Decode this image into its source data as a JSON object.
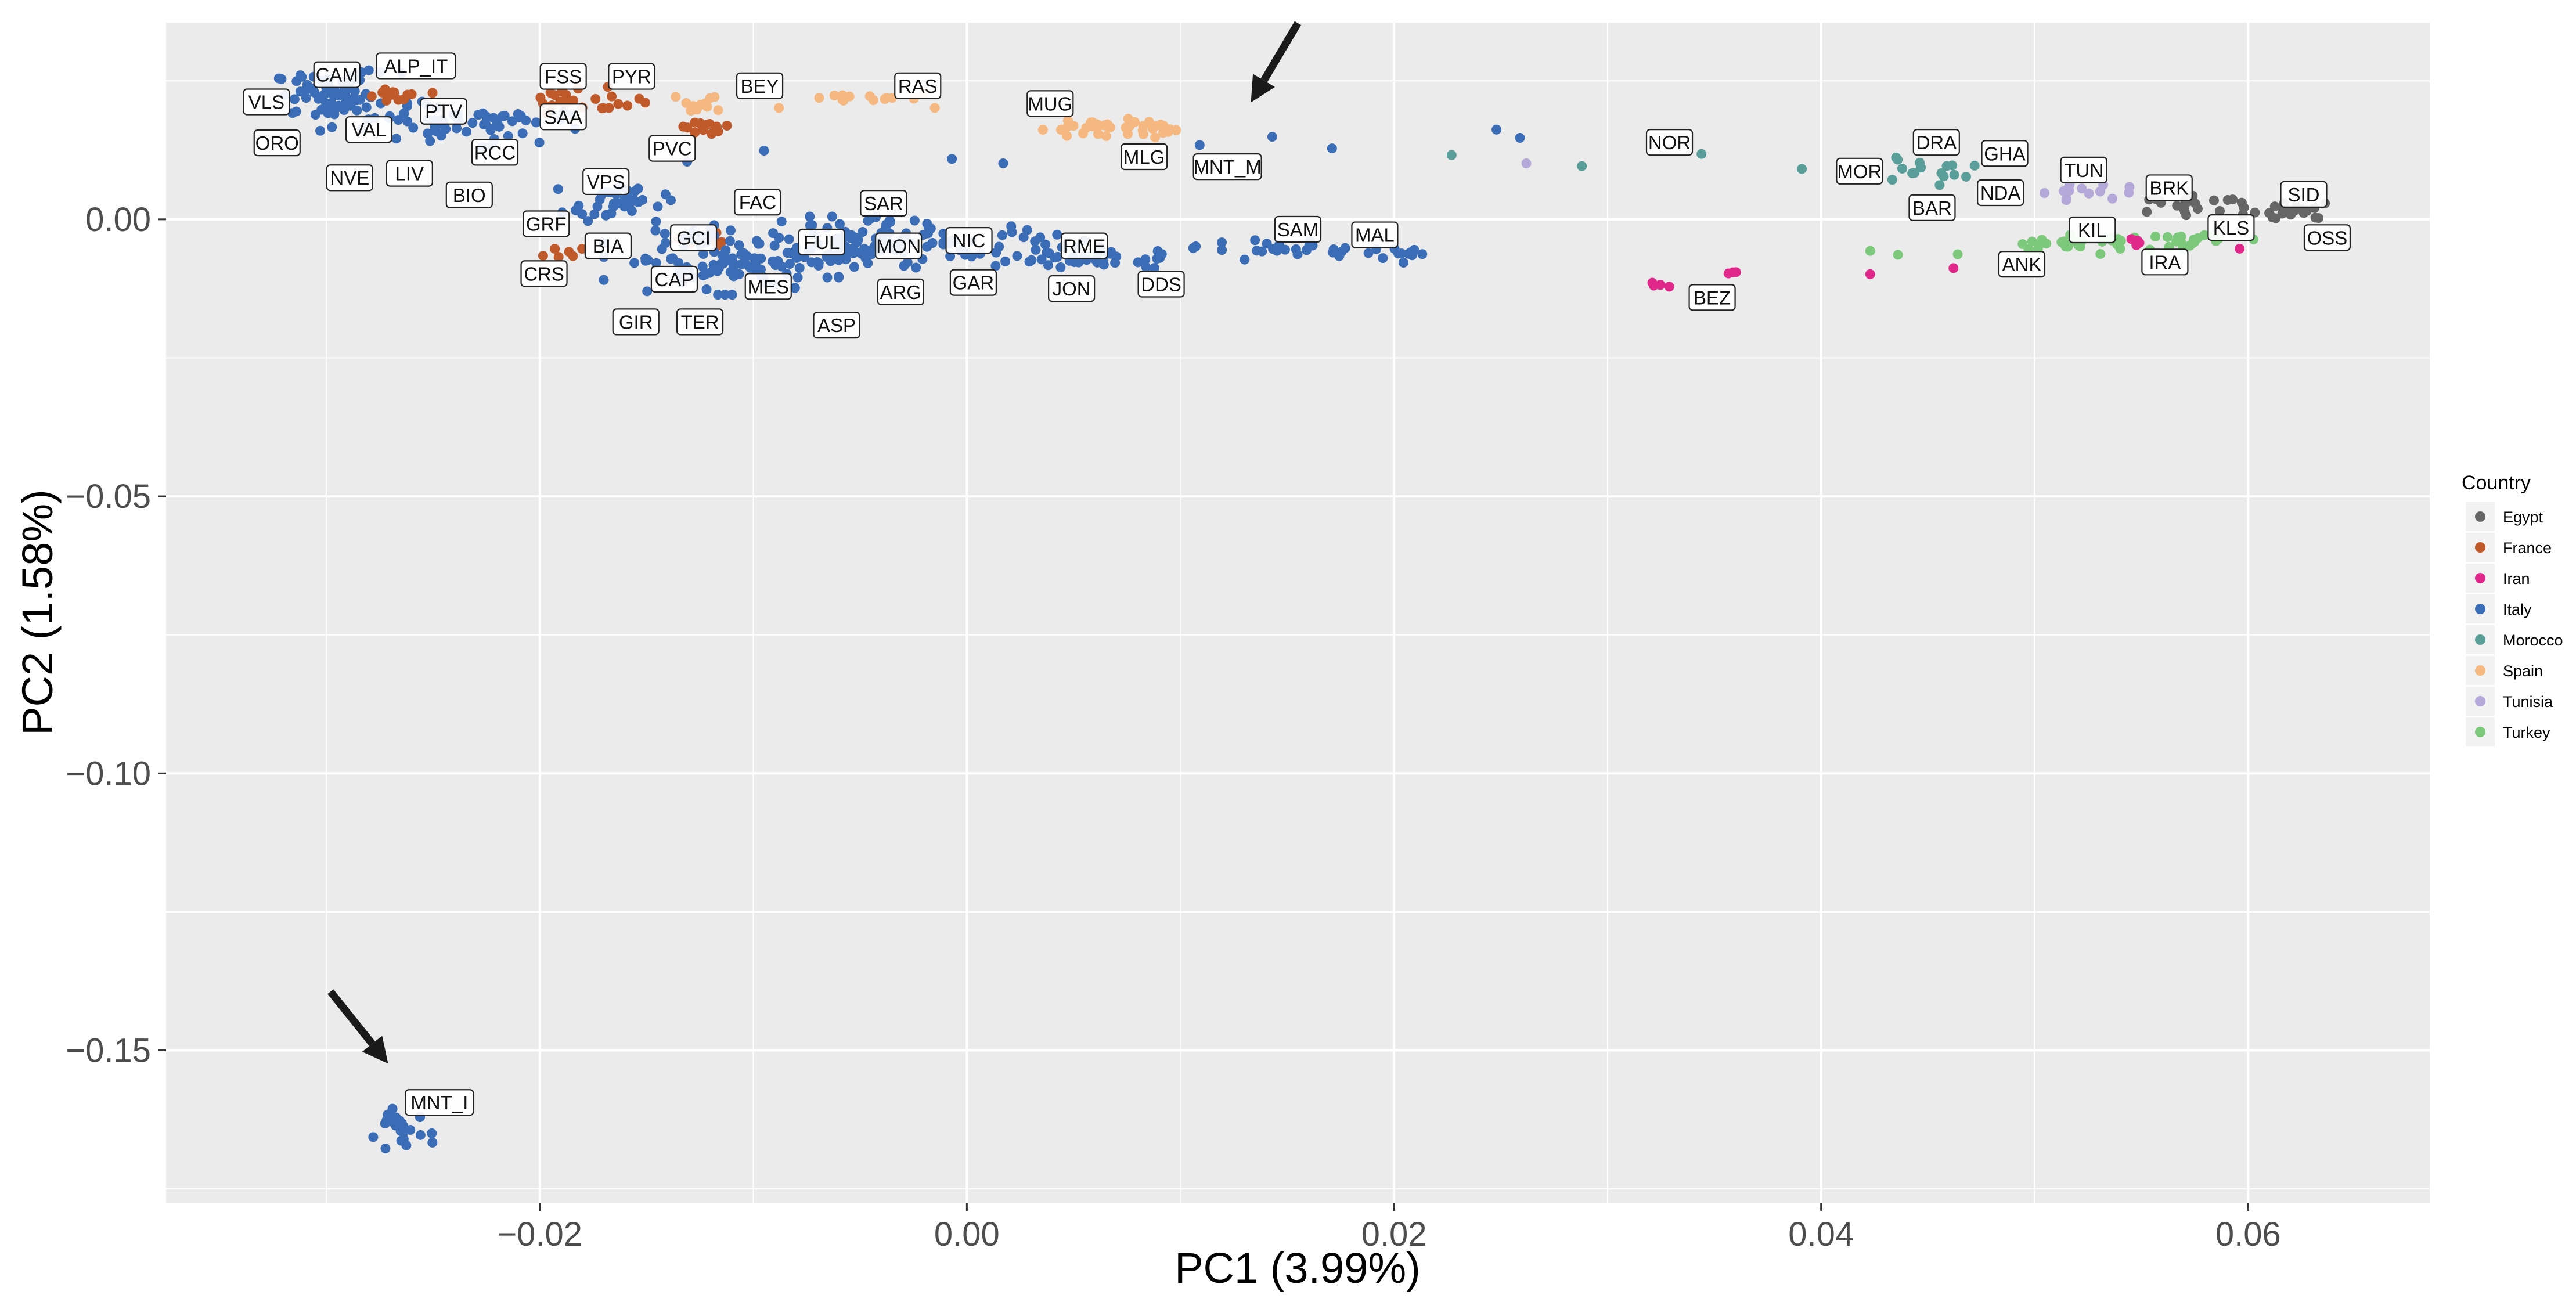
{
  "chart_data": {
    "type": "scatter",
    "xlabel": "PC1 (3.99%)",
    "ylabel": "PC2 (1.58%)",
    "xlim": [
      -0.0375,
      0.0685
    ],
    "ylim": [
      -0.1775,
      0.0355
    ],
    "x_ticks": [
      -0.02,
      0.0,
      0.02,
      0.04,
      0.06
    ],
    "x_tick_labels": [
      "−0.02",
      "0.00",
      "0.02",
      "0.04",
      "0.06"
    ],
    "y_ticks": [
      0.0,
      -0.05,
      -0.1,
      -0.15
    ],
    "y_tick_labels": [
      "0.00",
      "−0.05",
      "−0.10",
      "−0.15"
    ],
    "grid": true,
    "legend": {
      "title": "Country",
      "placement": "right",
      "entries": [
        {
          "name": "Egypt",
          "color": "#666666"
        },
        {
          "name": "France",
          "color": "#c05a2a"
        },
        {
          "name": "Iran",
          "color": "#e0288a"
        },
        {
          "name": "Italy",
          "color": "#3a6db5"
        },
        {
          "name": "Morocco",
          "color": "#5a9e9a"
        },
        {
          "name": "Spain",
          "color": "#f5b880"
        },
        {
          "name": "Tunisia",
          "color": "#b3a8d8"
        },
        {
          "name": "Turkey",
          "color": "#7cc97c"
        }
      ]
    },
    "clusters": [
      {
        "country": "Italy",
        "x": -0.0295,
        "y": 0.0225,
        "sx": 0.0015,
        "sy": 0.002,
        "n": 70
      },
      {
        "country": "Italy",
        "x": -0.025,
        "y": 0.017,
        "sx": 0.0025,
        "sy": 0.002,
        "n": 50
      },
      {
        "country": "France",
        "x": -0.0265,
        "y": 0.0225,
        "sx": 0.0008,
        "sy": 0.0006,
        "n": 14
      },
      {
        "country": "Italy",
        "x": -0.0205,
        "y": 0.018,
        "sx": 0.0015,
        "sy": 0.0012,
        "n": 18
      },
      {
        "country": "France",
        "x": -0.0185,
        "y": 0.0215,
        "sx": 0.0012,
        "sy": 0.0012,
        "n": 18
      },
      {
        "country": "France",
        "x": -0.016,
        "y": 0.021,
        "sx": 0.0006,
        "sy": 0.001,
        "n": 6
      },
      {
        "country": "Spain",
        "x": -0.0125,
        "y": 0.021,
        "sx": 0.0008,
        "sy": 0.001,
        "n": 12
      },
      {
        "country": "France",
        "x": -0.012,
        "y": 0.017,
        "sx": 0.0008,
        "sy": 0.0008,
        "n": 14
      },
      {
        "country": "Spain",
        "x": -0.0045,
        "y": 0.022,
        "sx": 0.0012,
        "sy": 0.0005,
        "n": 14
      },
      {
        "country": "Spain",
        "x": 0.0065,
        "y": 0.0165,
        "sx": 0.0015,
        "sy": 0.0009,
        "n": 38
      },
      {
        "country": "Italy",
        "x": -0.0165,
        "y": 0.003,
        "sx": 0.0012,
        "sy": 0.0015,
        "n": 35
      },
      {
        "country": "France",
        "x": -0.019,
        "y": -0.006,
        "sx": 0.0005,
        "sy": 0.0006,
        "n": 6
      },
      {
        "country": "France",
        "x": -0.0125,
        "y": -0.004,
        "sx": 0.0007,
        "sy": 0.0008,
        "n": 10
      },
      {
        "country": "Italy",
        "x": -0.0115,
        "y": -0.007,
        "sx": 0.0025,
        "sy": 0.003,
        "n": 110
      },
      {
        "country": "Italy",
        "x": -0.0055,
        "y": -0.005,
        "sx": 0.002,
        "sy": 0.0025,
        "n": 90
      },
      {
        "country": "Italy",
        "x": 0.0,
        "y": -0.004,
        "sx": 0.0025,
        "sy": 0.002,
        "n": 45
      },
      {
        "country": "Italy",
        "x": 0.006,
        "y": -0.007,
        "sx": 0.002,
        "sy": 0.001,
        "n": 40
      },
      {
        "country": "Italy",
        "x": 0.015,
        "y": -0.0055,
        "sx": 0.002,
        "sy": 0.0008,
        "n": 22
      },
      {
        "country": "Italy",
        "x": 0.0195,
        "y": -0.0065,
        "sx": 0.0012,
        "sy": 0.0006,
        "n": 14
      },
      {
        "country": "Italy",
        "x": -0.0265,
        "y": -0.1645,
        "sx": 0.0007,
        "sy": 0.0018,
        "n": 28
      },
      {
        "country": "Iran",
        "x": 0.032,
        "y": -0.012,
        "sx": 0.0005,
        "sy": 0.0003,
        "n": 4
      },
      {
        "country": "Iran",
        "x": 0.0355,
        "y": -0.0095,
        "sx": 0.0003,
        "sy": 0.0002,
        "n": 3
      },
      {
        "country": "Morocco",
        "x": 0.045,
        "y": 0.0085,
        "sx": 0.0015,
        "sy": 0.0012,
        "n": 16
      },
      {
        "country": "Tunisia",
        "x": 0.052,
        "y": 0.005,
        "sx": 0.0012,
        "sy": 0.0007,
        "n": 14
      },
      {
        "country": "Turkey",
        "x": 0.0515,
        "y": -0.0045,
        "sx": 0.0015,
        "sy": 0.0008,
        "n": 26
      },
      {
        "country": "Turkey",
        "x": 0.0575,
        "y": -0.0035,
        "sx": 0.0013,
        "sy": 0.0009,
        "n": 22
      },
      {
        "country": "Iran",
        "x": 0.0548,
        "y": -0.004,
        "sx": 0.0003,
        "sy": 0.0003,
        "n": 5
      },
      {
        "country": "Egypt",
        "x": 0.0575,
        "y": 0.0025,
        "sx": 0.0012,
        "sy": 0.0008,
        "n": 22
      },
      {
        "country": "Egypt",
        "x": 0.062,
        "y": 0.0015,
        "sx": 0.001,
        "sy": 0.0008,
        "n": 22
      }
    ],
    "points": [
      {
        "country": "Italy",
        "x": 0.0143,
        "y": 0.0149
      },
      {
        "country": "Italy",
        "x": 0.0171,
        "y": 0.0128
      },
      {
        "country": "Italy",
        "x": -0.0007,
        "y": 0.0109
      },
      {
        "country": "Italy",
        "x": 0.0017,
        "y": 0.0101
      },
      {
        "country": "Italy",
        "x": 0.0109,
        "y": 0.0134
      },
      {
        "country": "Italy",
        "x": -0.0131,
        "y": 0.0104
      },
      {
        "country": "Italy",
        "x": -0.0095,
        "y": 0.0124
      },
      {
        "country": "Italy",
        "x": 0.0259,
        "y": 0.0147
      },
      {
        "country": "Italy",
        "x": 0.0248,
        "y": 0.0162
      },
      {
        "country": "Italy",
        "x": 0.0018,
        "y": -0.0076
      },
      {
        "country": "Spain",
        "x": -0.0088,
        "y": 0.0201
      },
      {
        "country": "Spain",
        "x": -0.0015,
        "y": 0.0201
      },
      {
        "country": "Morocco",
        "x": 0.0227,
        "y": 0.0116
      },
      {
        "country": "Morocco",
        "x": 0.0288,
        "y": 0.0096
      },
      {
        "country": "Morocco",
        "x": 0.0344,
        "y": 0.0118
      },
      {
        "country": "Morocco",
        "x": 0.0391,
        "y": 0.0091
      },
      {
        "country": "Tunisia",
        "x": 0.0262,
        "y": 0.0101
      },
      {
        "country": "Turkey",
        "x": 0.0423,
        "y": -0.0057
      },
      {
        "country": "Turkey",
        "x": 0.0436,
        "y": -0.0064
      },
      {
        "country": "Turkey",
        "x": 0.0464,
        "y": -0.0063
      },
      {
        "country": "Iran",
        "x": 0.0423,
        "y": -0.0099
      },
      {
        "country": "Iran",
        "x": 0.0462,
        "y": -0.0088
      },
      {
        "country": "Iran",
        "x": 0.0596,
        "y": -0.0053
      }
    ],
    "annotations": [
      {
        "text": "CAM",
        "x": -0.0295,
        "y": 0.0261
      },
      {
        "text": "ALP_IT",
        "x": -0.0258,
        "y": 0.0277
      },
      {
        "text": "VLS",
        "x": -0.0328,
        "y": 0.0212
      },
      {
        "text": "PTV",
        "x": -0.0245,
        "y": 0.0195
      },
      {
        "text": "VAL",
        "x": -0.028,
        "y": 0.0162
      },
      {
        "text": "ORO",
        "x": -0.0323,
        "y": 0.0138
      },
      {
        "text": "NVE",
        "x": -0.0289,
        "y": 0.0075
      },
      {
        "text": "LIV",
        "x": -0.0261,
        "y": 0.0083
      },
      {
        "text": "RCC",
        "x": -0.0221,
        "y": 0.0121
      },
      {
        "text": "BIO",
        "x": -0.0233,
        "y": 0.0044
      },
      {
        "text": "FSS",
        "x": -0.0189,
        "y": 0.0258
      },
      {
        "text": "PYR",
        "x": -0.0157,
        "y": 0.0258
      },
      {
        "text": "SAA",
        "x": -0.0189,
        "y": 0.0185
      },
      {
        "text": "PVC",
        "x": -0.0138,
        "y": 0.0128
      },
      {
        "text": "BEY",
        "x": -0.0097,
        "y": 0.0241
      },
      {
        "text": "RAS",
        "x": -0.0023,
        "y": 0.0241
      },
      {
        "text": "MUG",
        "x": 0.0039,
        "y": 0.0209
      },
      {
        "text": "MLG",
        "x": 0.0083,
        "y": 0.0113
      },
      {
        "text": "MNT_M",
        "x": 0.0122,
        "y": 0.0095
      },
      {
        "text": "VPS",
        "x": -0.0169,
        "y": 0.0068
      },
      {
        "text": "FAC",
        "x": -0.0098,
        "y": 0.0031
      },
      {
        "text": "SAR",
        "x": -0.0039,
        "y": 0.0029
      },
      {
        "text": "GRF",
        "x": -0.0197,
        "y": -0.0008
      },
      {
        "text": "BIA",
        "x": -0.0168,
        "y": -0.0048
      },
      {
        "text": "GCI",
        "x": -0.0128,
        "y": -0.0033
      },
      {
        "text": "FUL",
        "x": -0.0068,
        "y": -0.0041
      },
      {
        "text": "MON",
        "x": -0.0032,
        "y": -0.0048
      },
      {
        "text": "NIC",
        "x": 0.0001,
        "y": -0.0038
      },
      {
        "text": "RME",
        "x": 0.0055,
        "y": -0.0048
      },
      {
        "text": "SAM",
        "x": 0.0155,
        "y": -0.0018
      },
      {
        "text": "MAL",
        "x": 0.0191,
        "y": -0.0028
      },
      {
        "text": "CRS",
        "x": -0.0198,
        "y": -0.0098
      },
      {
        "text": "CAP",
        "x": -0.0137,
        "y": -0.0108
      },
      {
        "text": "MES",
        "x": -0.0093,
        "y": -0.0121
      },
      {
        "text": "GAR",
        "x": 0.0003,
        "y": -0.0114
      },
      {
        "text": "JON",
        "x": 0.0049,
        "y": -0.0125
      },
      {
        "text": "DDS",
        "x": 0.0091,
        "y": -0.0117
      },
      {
        "text": "ARG",
        "x": -0.0031,
        "y": -0.0131
      },
      {
        "text": "GIR",
        "x": -0.0155,
        "y": -0.0185
      },
      {
        "text": "TER",
        "x": -0.0125,
        "y": -0.0185
      },
      {
        "text": "ASP",
        "x": -0.0061,
        "y": -0.0191
      },
      {
        "text": "MNT_I",
        "x": -0.0247,
        "y": -0.1594
      },
      {
        "text": "NOR",
        "x": 0.0329,
        "y": 0.0139
      },
      {
        "text": "BEZ",
        "x": 0.0349,
        "y": -0.0141
      },
      {
        "text": "DRA",
        "x": 0.0454,
        "y": 0.0139
      },
      {
        "text": "GHA",
        "x": 0.0486,
        "y": 0.0119
      },
      {
        "text": "MOR",
        "x": 0.0418,
        "y": 0.0087
      },
      {
        "text": "BAR",
        "x": 0.0452,
        "y": 0.0021
      },
      {
        "text": "NDA",
        "x": 0.0484,
        "y": 0.0048
      },
      {
        "text": "TUN",
        "x": 0.0523,
        "y": 0.0089
      },
      {
        "text": "BRK",
        "x": 0.0563,
        "y": 0.0057
      },
      {
        "text": "SID",
        "x": 0.0626,
        "y": 0.0045
      },
      {
        "text": "KIL",
        "x": 0.0527,
        "y": -0.0019
      },
      {
        "text": "KLS",
        "x": 0.0592,
        "y": -0.0015
      },
      {
        "text": "OSS",
        "x": 0.0637,
        "y": -0.0033
      },
      {
        "text": "ANK",
        "x": 0.0494,
        "y": -0.0081
      },
      {
        "text": "IRA",
        "x": 0.0561,
        "y": -0.0077
      }
    ],
    "arrows": [
      {
        "from": [
          0.0155,
          0.0354
        ],
        "to": [
          0.0133,
          0.0211
        ]
      },
      {
        "from": [
          -0.0298,
          -0.1394
        ],
        "to": [
          -0.0271,
          -0.1524
        ]
      }
    ]
  }
}
